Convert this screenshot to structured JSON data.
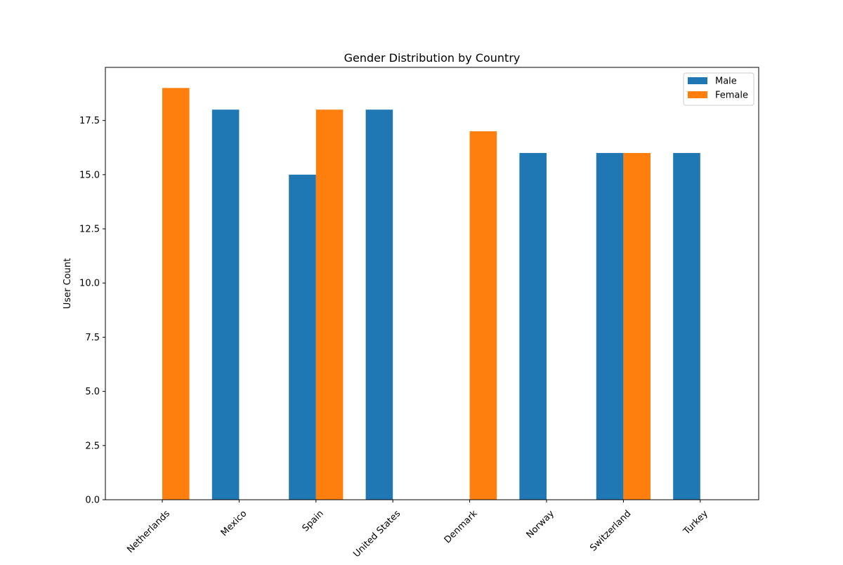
{
  "chart_data": {
    "type": "bar",
    "title": "Gender Distribution by Country",
    "xlabel": "",
    "ylabel": "User Count",
    "categories": [
      "Netherlands",
      "Mexico",
      "Spain",
      "United States",
      "Denmark",
      "Norway",
      "Switzerland",
      "Turkey"
    ],
    "series": [
      {
        "name": "Male",
        "color": "#1f77b4",
        "values": [
          0,
          18,
          15,
          18,
          0,
          16,
          16,
          16
        ]
      },
      {
        "name": "Female",
        "color": "#ff7f0e",
        "values": [
          19,
          0,
          18,
          0,
          17,
          0,
          16,
          0
        ]
      }
    ],
    "ylim": [
      0,
      19.95
    ],
    "yticks": [
      0,
      2.5,
      5,
      7.5,
      10,
      12.5,
      15,
      17.5
    ],
    "ytick_labels": [
      "0.0",
      "2.5",
      "5.0",
      "7.5",
      "10.0",
      "12.5",
      "15.0",
      "17.5"
    ],
    "legend_position": "top-right",
    "grid": false
  }
}
